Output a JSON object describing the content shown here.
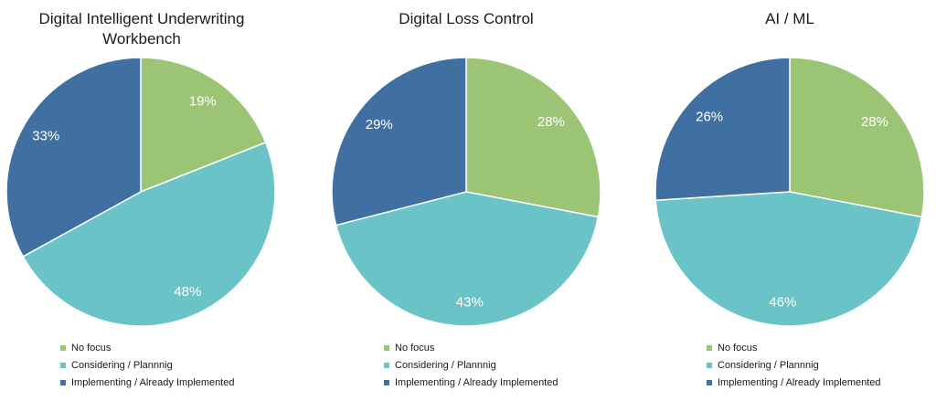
{
  "colors": {
    "no_focus": "#9bc474",
    "considering": "#6ac3c6",
    "implementing": "#4070a2"
  },
  "legend": [
    "No focus",
    "Considering / Plannnig",
    "Implementing / Already Implemented"
  ],
  "chart_data": [
    {
      "type": "pie",
      "title": "Digital Intelligent Underwriting Workbench",
      "categories": [
        "No focus",
        "Considering / Plannnig",
        "Implementing / Already Implemented"
      ],
      "values": [
        19,
        48,
        33
      ],
      "labels": [
        "19%",
        "48%",
        "33%"
      ]
    },
    {
      "type": "pie",
      "title": "Digital Loss Control",
      "categories": [
        "No focus",
        "Considering / Plannnig",
        "Implementing / Already Implemented"
      ],
      "values": [
        28,
        43,
        29
      ],
      "labels": [
        "28%",
        "43%",
        "29%"
      ]
    },
    {
      "type": "pie",
      "title": "AI / ML",
      "categories": [
        "No focus",
        "Considering / Plannnig",
        "Implementing / Already Implemented"
      ],
      "values": [
        28,
        46,
        26
      ],
      "labels": [
        "28%",
        "46%",
        "26%"
      ]
    }
  ]
}
